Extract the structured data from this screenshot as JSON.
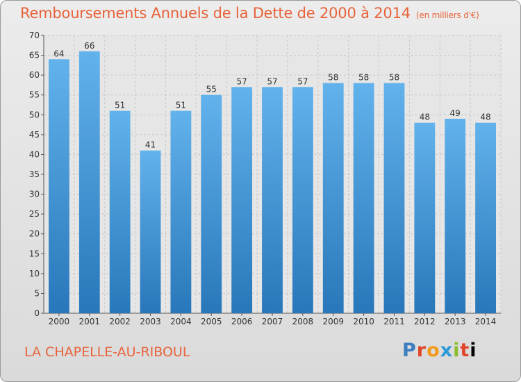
{
  "header": {
    "title": "Remboursements Annuels de la Dette de 2000 à 2014",
    "unit": "(en milliers d'€)"
  },
  "footer": {
    "place": "LA CHAPELLE-AU-RIBOUL",
    "logo": "Proxiti"
  },
  "colors": {
    "bar_top": "#62b2ec",
    "bar_bottom": "#2877ba",
    "title": "#e8623a"
  },
  "chart_data": {
    "type": "bar",
    "title": "Remboursements Annuels de la Dette de 2000 à 2014",
    "xlabel": "",
    "ylabel": "",
    "categories": [
      "2000",
      "2001",
      "2002",
      "2003",
      "2004",
      "2005",
      "2006",
      "2007",
      "2008",
      "2009",
      "2010",
      "2011",
      "2012",
      "2013",
      "2014"
    ],
    "values": [
      64,
      66,
      51,
      41,
      51,
      55,
      57,
      57,
      57,
      58,
      58,
      58,
      48,
      49,
      48
    ],
    "ylim": [
      0,
      70
    ],
    "yticks": [
      0,
      5,
      10,
      15,
      20,
      25,
      30,
      35,
      40,
      45,
      50,
      55,
      60,
      65,
      70
    ],
    "grid": true,
    "data_labels": true
  }
}
